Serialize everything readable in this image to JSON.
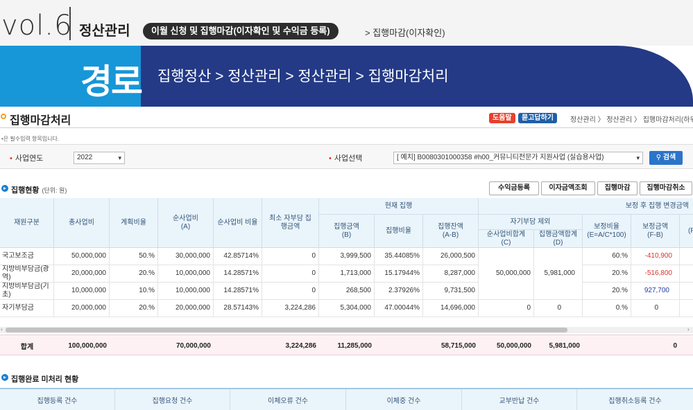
{
  "banner": {
    "vol": "vol.6",
    "chapter": "정산관리",
    "pill": "이월 신청 및 집행마감(이자확인 및 수익금 등록)",
    "sub_crumb": "> 집행마감(이자확인)",
    "path_label": "경로",
    "path": "집행정산 > 정산관리 > 정산관리 > 집행마감처리"
  },
  "screen": {
    "title": "집행마감처리",
    "help_label": "도움말",
    "qna_label": "묻고답하기",
    "breadcrumb": "정산관리 〉 정산관리 〉 집행마감처리(하위)",
    "required_note": "•은 필수입력 항목입니다.",
    "search": {
      "year_label": "사업연도",
      "year_value": "2022",
      "project_label": "사업선택",
      "project_value": "[    예치] B0080301000358 #h00_커뮤니티전문가 지원사업 (실습용사업)",
      "search_label": "검색"
    },
    "status_section": {
      "title": "집행현황",
      "unit": "(단위: 원)"
    },
    "actions": {
      "revenue": "수익금등록",
      "interest": "이자금액조회",
      "close": "집행마감",
      "cancel": "집행마감취소"
    },
    "headers": {
      "source": "재원구분",
      "total": "총사업비",
      "plan_ratio": "계획비율",
      "net": "순사업비 (A)",
      "net_ratio": "순사업비 비율",
      "min_self": "최소 자부담 집행금액",
      "current": "현재 집행",
      "exec_amount": "집행금액 (B)",
      "exec_ratio": "집행비율",
      "exec_balance": "집행잔액 (A-B)",
      "after_correction": "보정 후 집행 변경금액",
      "self_excluded": "자기부담 제외",
      "net_sum": "순사업비합계 (C)",
      "exec_sum": "집행금액합계 (D)",
      "corr_ratio": "보정비율 (E=A/C*100)",
      "corr_amount": "보정금액 (F-B)",
      "extra": "(F"
    },
    "rows": [
      {
        "source": "국고보조금",
        "total": "50,000,000",
        "plan_ratio": "50.%",
        "net": "30,000,000",
        "net_ratio": "42.85714%",
        "min_self": "0",
        "exec_amount": "3,999,500",
        "exec_ratio": "35.44085%",
        "exec_balance": "26,000,500",
        "corr_ratio": "60.%",
        "corr_amount": "-410,900"
      },
      {
        "source": "지방비부담금(광역)",
        "total": "20,000,000",
        "plan_ratio": "20.%",
        "net": "10,000,000",
        "net_ratio": "14.28571%",
        "min_self": "0",
        "exec_amount": "1,713,000",
        "exec_ratio": "15.17944%",
        "exec_balance": "8,287,000",
        "corr_ratio": "20.%",
        "corr_amount": "-516,800"
      },
      {
        "source": "지방비부담금(기초)",
        "total": "10,000,000",
        "plan_ratio": "10.%",
        "net": "10,000,000",
        "net_ratio": "14.28571%",
        "min_self": "0",
        "exec_amount": "268,500",
        "exec_ratio": "2.37926%",
        "exec_balance": "9,731,500",
        "corr_ratio": "20.%",
        "corr_amount": "927,700"
      },
      {
        "source": "자기부담금",
        "total": "20,000,000",
        "plan_ratio": "20.%",
        "net": "20,000,000",
        "net_ratio": "28.57143%",
        "min_self": "3,224,286",
        "exec_amount": "5,304,000",
        "exec_ratio": "47.00044%",
        "exec_balance": "14,696,000",
        "net_sum": "0",
        "exec_sum": "0",
        "corr_ratio": "0.%",
        "corr_amount": "0"
      }
    ],
    "merged": {
      "net_sum": "50,000,000",
      "exec_sum": "5,981,000"
    },
    "totals": {
      "label": "합계",
      "total": "100,000,000",
      "net": "70,000,000",
      "min_self": "3,224,286",
      "exec_amount": "11,285,000",
      "exec_balance": "58,715,000",
      "net_sum": "50,000,000",
      "exec_sum": "5,981,000",
      "corr_amount": "0"
    },
    "pending_section": {
      "title": "집행완료 미처리 현황"
    },
    "pending_headers": [
      "집행등록 건수",
      "집행요청 건수",
      "이체오류 건수",
      "이체중 건수",
      "교부반납 건수",
      "집행취소등록 건수"
    ]
  },
  "colors": {
    "cyan": "#1796d8",
    "navy": "#243a86",
    "accent_red": "#d9342b",
    "header_bg": "#eaf4fb"
  }
}
